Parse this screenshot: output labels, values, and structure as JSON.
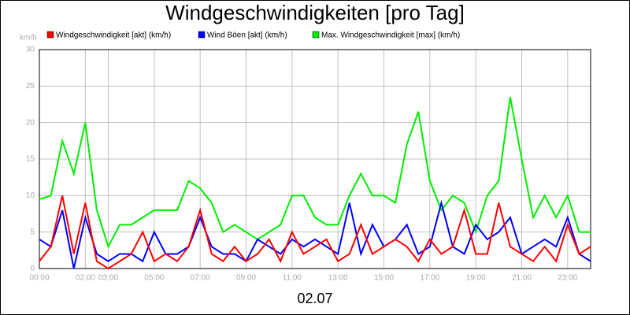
{
  "chart_data": {
    "type": "line",
    "title": "Windgeschwindigkeiten [pro Tag]",
    "y_unit": "km/h",
    "x_label": "02.07",
    "x": [
      0,
      0.5,
      1,
      1.5,
      2,
      2.5,
      3,
      3.5,
      4,
      4.5,
      5,
      5.5,
      6,
      6.5,
      7,
      7.5,
      8,
      8.5,
      9,
      9.5,
      10,
      10.5,
      11,
      11.5,
      12,
      12.5,
      13,
      13.5,
      14,
      14.5,
      15,
      15.5,
      16,
      16.5,
      17,
      17.5,
      18,
      18.5,
      19,
      19.5,
      20,
      20.5,
      21,
      21.5,
      22,
      22.5,
      23,
      23.5,
      24
    ],
    "series": [
      {
        "name": "Windgeschwindigkeit [akt] (km/h)",
        "color": "#ff0000",
        "values": [
          1,
          3,
          10,
          2,
          9,
          1,
          0,
          1,
          2,
          5,
          1,
          2,
          1,
          3,
          8,
          2,
          1,
          3,
          1,
          2,
          4,
          1,
          5,
          2,
          3,
          4,
          1,
          2,
          6,
          2,
          3,
          4,
          3,
          1,
          4,
          2,
          3,
          8,
          2,
          2,
          9,
          3,
          2,
          1,
          3,
          1,
          6,
          2,
          3
        ]
      },
      {
        "name": "Wind Böen [akt] (km/h)",
        "color": "#0000ff",
        "values": [
          4,
          3,
          8,
          0,
          7,
          2,
          1,
          2,
          2,
          1,
          5,
          2,
          2,
          3,
          7,
          3,
          2,
          2,
          1,
          4,
          3,
          2,
          4,
          3,
          4,
          3,
          2,
          9,
          2,
          6,
          3,
          4,
          6,
          2,
          3,
          9,
          3,
          2,
          6,
          4,
          5,
          7,
          2,
          3,
          4,
          3,
          7,
          2,
          1
        ]
      },
      {
        "name": "Max. Windgeschwindigkeit [max] (km/h)",
        "color": "#00ee00",
        "values": [
          9.5,
          10,
          17.5,
          13,
          20,
          8,
          3,
          6,
          6,
          7,
          8,
          8,
          8,
          12,
          11,
          9,
          5,
          6,
          5,
          4,
          5,
          6,
          10,
          10,
          7,
          6,
          6,
          10,
          13,
          10,
          10,
          9,
          17,
          21.5,
          12,
          8,
          10,
          9,
          5,
          10,
          12,
          23.5,
          15,
          7,
          10,
          7,
          10,
          5,
          5
        ]
      }
    ],
    "xlim": [
      0,
      24
    ],
    "xticks": [
      {
        "value": 0,
        "label": "00:00"
      },
      {
        "value": 2,
        "label": "02:00"
      },
      {
        "value": 3,
        "label": "03:00"
      },
      {
        "value": 5,
        "label": "05:00"
      },
      {
        "value": 7,
        "label": "07:00"
      },
      {
        "value": 9,
        "label": "09:00"
      },
      {
        "value": 11,
        "label": "11:00"
      },
      {
        "value": 13,
        "label": "13:00"
      },
      {
        "value": 15,
        "label": "15:00"
      },
      {
        "value": 17,
        "label": "17:00"
      },
      {
        "value": 19,
        "label": "19:00"
      },
      {
        "value": 21,
        "label": "21:00"
      },
      {
        "value": 23,
        "label": "23:00"
      }
    ],
    "ylim": [
      0,
      30
    ],
    "yticks": [
      0,
      5,
      10,
      15,
      20,
      25,
      30
    ],
    "grid": true
  }
}
